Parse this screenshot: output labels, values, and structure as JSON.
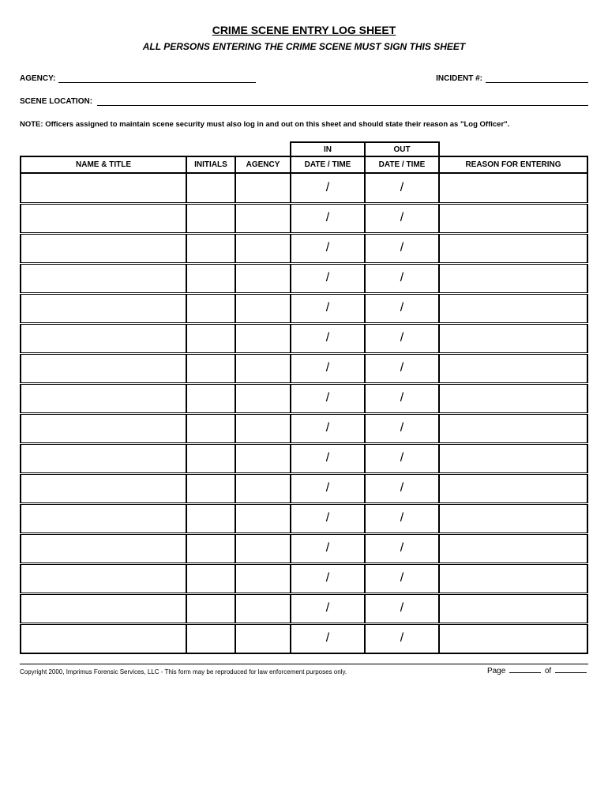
{
  "title": "CRIME SCENE ENTRY LOG SHEET",
  "subtitle": "ALL PERSONS ENTERING THE CRIME SCENE MUST SIGN THIS SHEET",
  "fields": {
    "agency_label": "AGENCY:",
    "incident_label": "INCIDENT #:",
    "location_label": "SCENE LOCATION:"
  },
  "note": "NOTE: Officers assigned to maintain scene security must also log in and out on this sheet and should state their reason as \"Log Officer\".",
  "table": {
    "super_headers": {
      "in": "IN",
      "out": "OUT"
    },
    "headers": {
      "name_title": "NAME & TITLE",
      "initials": "INITIALS",
      "agency": "AGENCY",
      "date_time_in": "DATE / TIME",
      "date_time_out": "DATE / TIME",
      "reason": "REASON FOR ENTERING"
    },
    "row_count": 16,
    "cell_placeholder": "/",
    "column_widths": {
      "name_title": 210,
      "initials": 62,
      "agency": 70,
      "in": 94,
      "out": 94
    }
  },
  "footer": {
    "copyright": "Copyright 2000, Imprimus Forensic Services, LLC - This form may be reproduced for law enforcement purposes only.",
    "page_label": "Page",
    "of_label": "of"
  },
  "colors": {
    "text": "#000000",
    "background": "#ffffff",
    "border": "#000000"
  },
  "typography": {
    "title_fontsize": 14,
    "subtitle_fontsize": 12,
    "label_fontsize": 10,
    "footer_fontsize": 8
  }
}
